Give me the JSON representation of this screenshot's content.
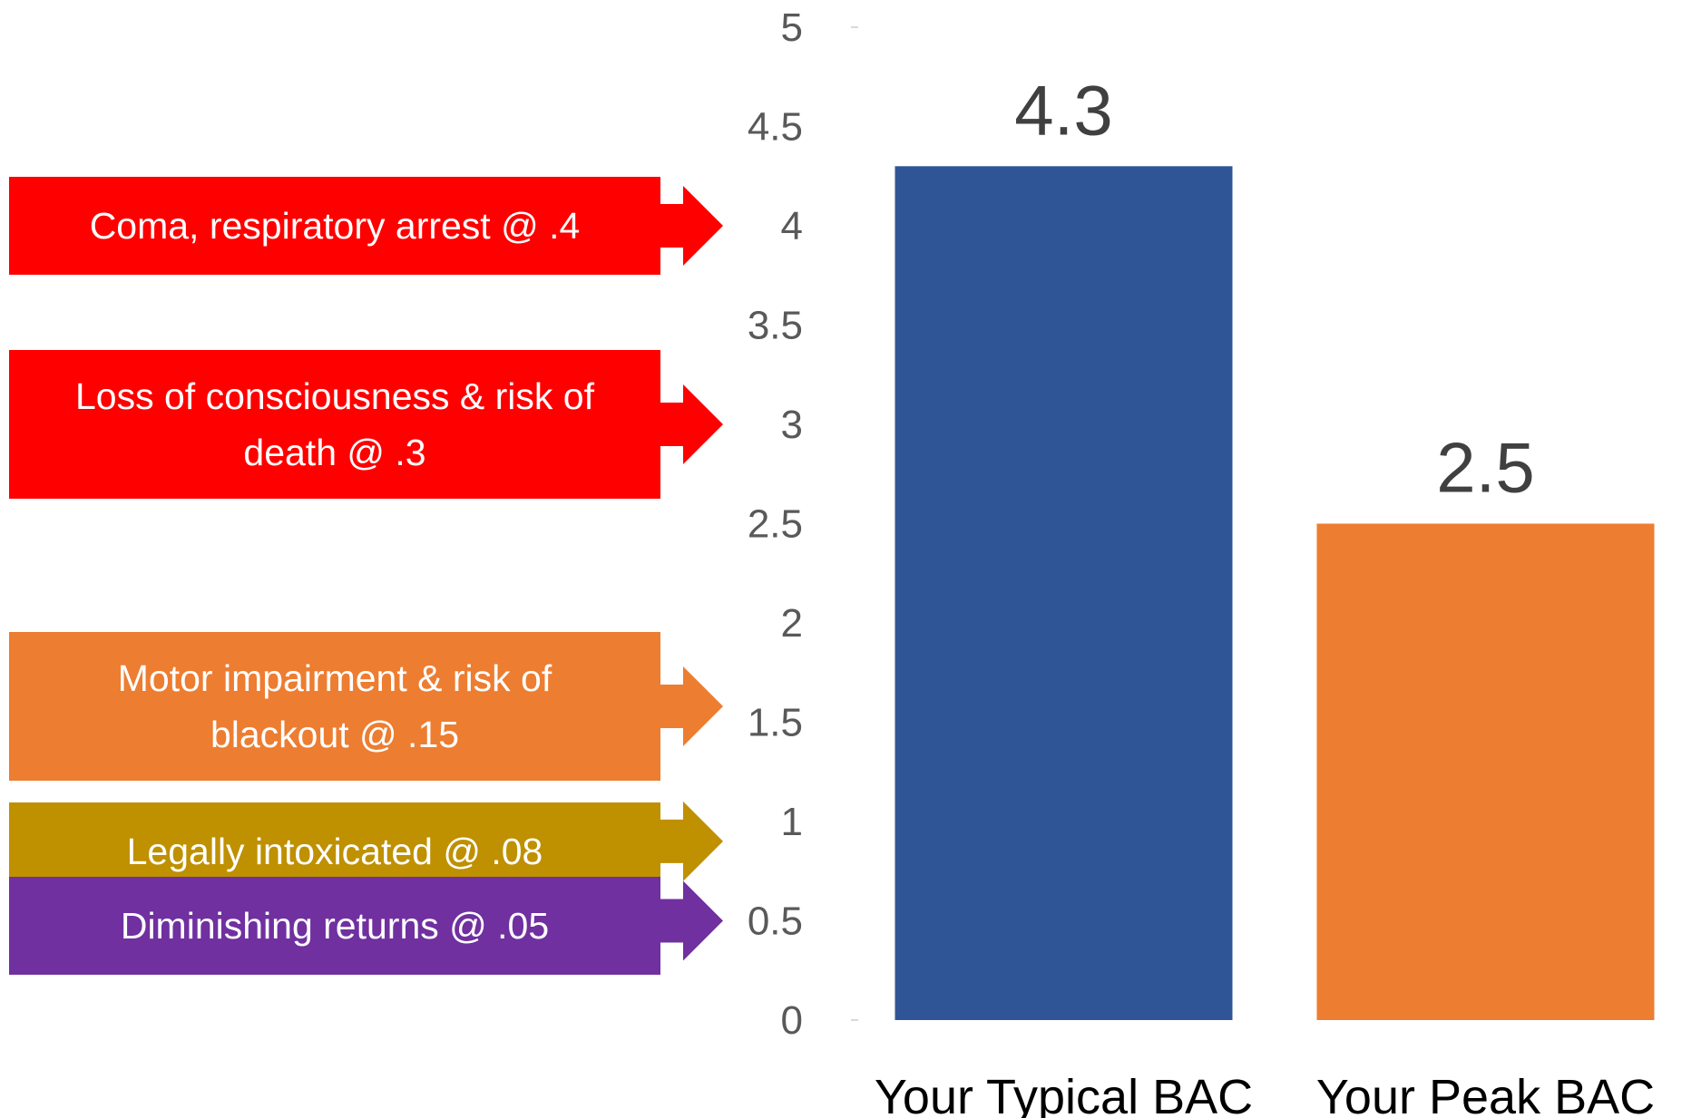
{
  "chart_data": {
    "type": "bar",
    "categories": [
      "Your Typical BAC",
      "Your Peak BAC"
    ],
    "values": [
      4.3,
      2.5
    ],
    "value_labels": [
      "4.3",
      "2.5"
    ],
    "ylim": [
      0,
      5
    ],
    "yticks": [
      0,
      0.5,
      1,
      1.5,
      2,
      2.5,
      3,
      3.5,
      4,
      4.5,
      5
    ],
    "ytick_labels": [
      "0",
      "0.5",
      "1",
      "1.5",
      "2",
      "2.5",
      "3",
      "3.5",
      "4",
      "4.5",
      "5"
    ],
    "bar_colors": [
      "#2f5597",
      "#ed7d31"
    ],
    "grid": false,
    "title": "",
    "xlabel": "",
    "ylabel": ""
  },
  "annotations": [
    {
      "lines": [
        "Coma, respiratory arrest @ .4"
      ],
      "color": "#ff0000",
      "y_value": 4
    },
    {
      "lines": [
        "Loss of consciousness  & risk of",
        "death @ .3"
      ],
      "color": "#ff0000",
      "y_value": 3
    },
    {
      "lines": [
        "Motor impairment & risk of",
        "blackout @ .15"
      ],
      "color": "#ed7d31",
      "y_value": 1.58
    },
    {
      "lines": [
        "Legally intoxicated @ .08"
      ],
      "color": "#bf9000",
      "y_value": 0.9
    },
    {
      "lines": [
        "Diminishing returns @ .05"
      ],
      "color": "#7030a0",
      "y_value": 0.5
    }
  ]
}
